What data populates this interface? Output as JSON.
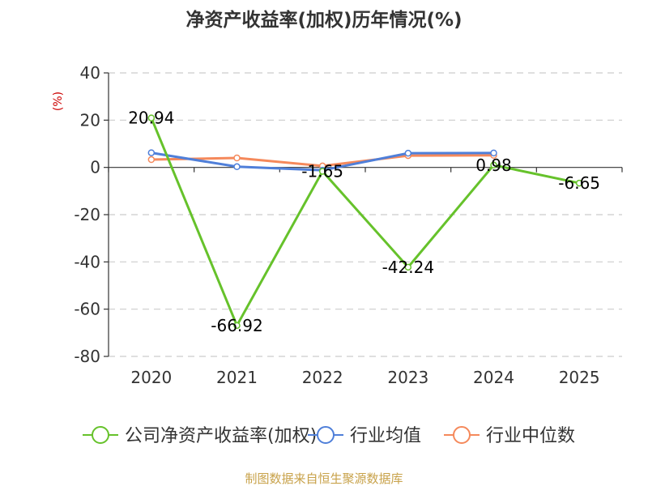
{
  "chart_data": {
    "type": "line",
    "title": "净资产收益率(加权)历年情况(%)",
    "ylabel": "(%)",
    "xlabel": "",
    "categories": [
      "2020",
      "2021",
      "2022",
      "2023",
      "2024",
      "2025"
    ],
    "ylim": [
      -80,
      40
    ],
    "yticks": [
      40,
      20,
      0,
      -20,
      -40,
      -60,
      -80
    ],
    "grid": true,
    "legend_position": "bottom",
    "series": [
      {
        "name": "公司净资产收益率(加权)",
        "color": "#66c22b",
        "values": [
          20.94,
          -66.92,
          -1.65,
          -42.24,
          0.98,
          -6.65
        ],
        "labels": [
          "20.94",
          "-66.92",
          "-1.65",
          "-42.24",
          "0.98",
          "-6.65"
        ]
      },
      {
        "name": "行业均值",
        "color": "#4f7fd9",
        "values": [
          6.2,
          0.3,
          -1.2,
          6.0,
          6.1,
          null
        ]
      },
      {
        "name": "行业中位数",
        "color": "#f5895b",
        "values": [
          3.3,
          4.0,
          0.6,
          5.0,
          5.1,
          null
        ]
      }
    ]
  },
  "source": "制图数据来自恒生聚源数据库"
}
